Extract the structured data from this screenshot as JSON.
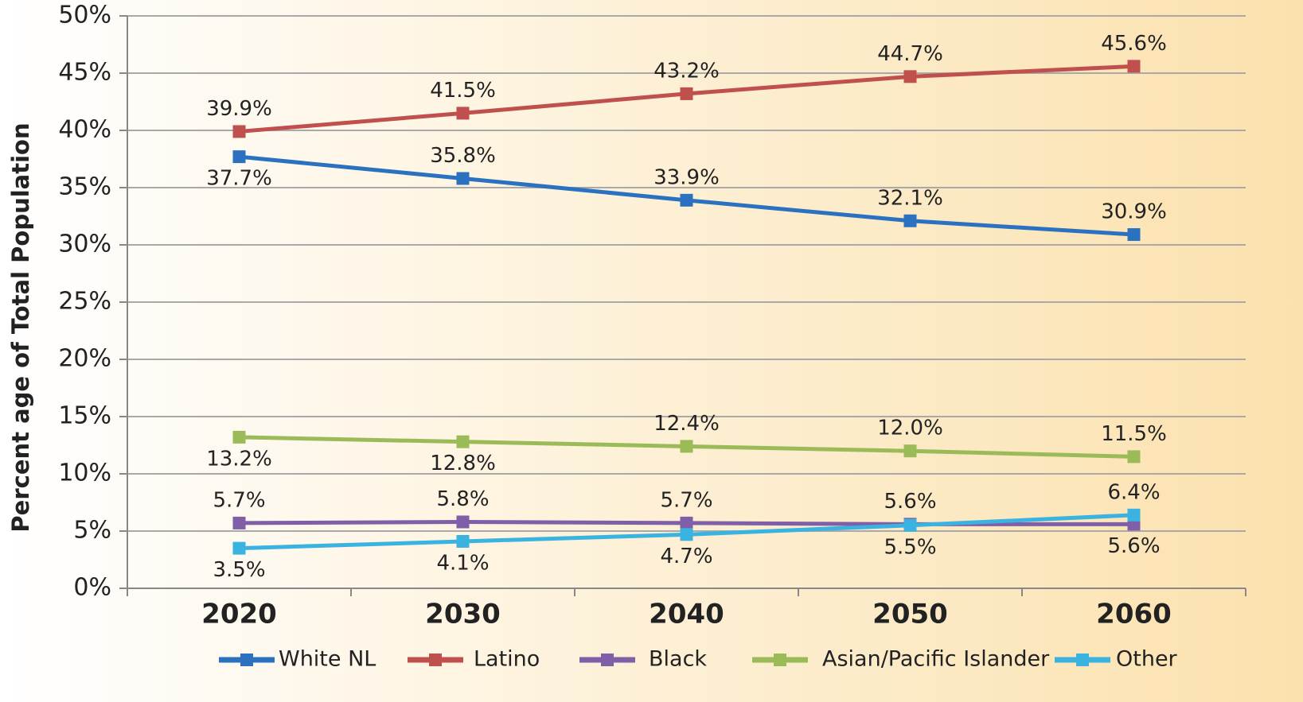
{
  "chart_data": {
    "type": "line",
    "ylabel": "Percent age of Total Population",
    "categories": [
      "2020",
      "2030",
      "2040",
      "2050",
      "2060"
    ],
    "series": [
      {
        "name": "White NL",
        "color": "#2a72c0",
        "values": [
          37.7,
          35.8,
          33.9,
          32.1,
          30.9
        ],
        "value_labels": [
          "37.7%",
          "35.8%",
          "33.9%",
          "32.1%",
          "30.9%"
        ]
      },
      {
        "name": "Latino",
        "color": "#c0504d",
        "values": [
          39.9,
          41.5,
          43.2,
          44.7,
          45.6
        ],
        "value_labels": [
          "39.9%",
          "41.5%",
          "43.2%",
          "44.7%",
          "45.6%"
        ]
      },
      {
        "name": "Black",
        "color": "#7f5fa8",
        "values": [
          5.7,
          5.8,
          5.7,
          5.6,
          5.6
        ],
        "value_labels": [
          "5.7%",
          "5.8%",
          "5.7%",
          "5.6%",
          "5.6%"
        ]
      },
      {
        "name": "Asian/Pacific Islander",
        "color": "#9bbb59",
        "values": [
          13.2,
          12.8,
          12.4,
          12.0,
          11.5
        ],
        "value_labels": [
          "13.2%",
          "12.8%",
          "12.4%",
          "12.0%",
          "11.5%"
        ]
      },
      {
        "name": "Other",
        "color": "#3bb3e0",
        "values": [
          3.5,
          4.1,
          4.7,
          5.5,
          6.4
        ],
        "value_labels": [
          "3.5%",
          "4.1%",
          "4.7%",
          "5.5%",
          "6.4%"
        ]
      }
    ],
    "ylim": [
      0,
      50
    ],
    "yticks": [
      {
        "value": 0,
        "label": "0%"
      },
      {
        "value": 5,
        "label": "5%"
      },
      {
        "value": 10,
        "label": "10%"
      },
      {
        "value": 15,
        "label": "15%"
      },
      {
        "value": 20,
        "label": "20%"
      },
      {
        "value": 25,
        "label": "25%"
      },
      {
        "value": 30,
        "label": "30%"
      },
      {
        "value": 35,
        "label": "35%"
      },
      {
        "value": 40,
        "label": "40%"
      },
      {
        "value": 45,
        "label": "45%"
      },
      {
        "value": 50,
        "label": "50%"
      }
    ],
    "grid": true,
    "legend": "bottom"
  }
}
